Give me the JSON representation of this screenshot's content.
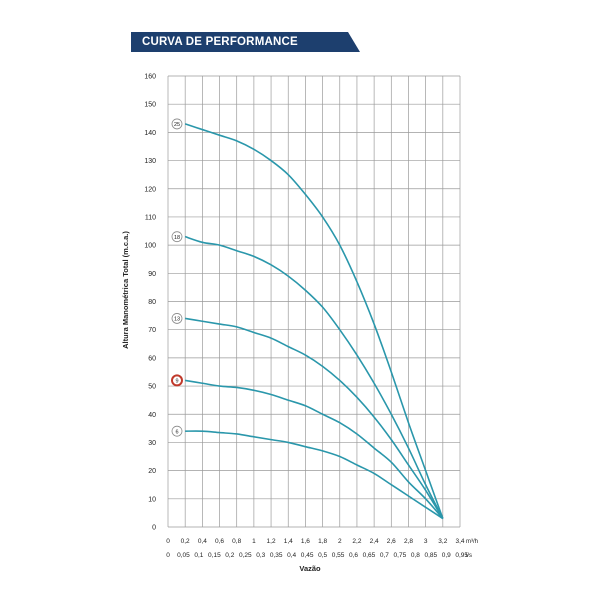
{
  "header": {
    "title": "CURVA DE PERFORMANCE"
  },
  "colors": {
    "banner": "#1d3f6e",
    "curve": "#2a97ab",
    "grid": "#9a9a9a",
    "highlight": "#c0392b"
  },
  "chart_data": {
    "type": "line",
    "title": "",
    "ylabel": "Altura Manométrica Total (m.c.a.)",
    "xlabel": "Vazão",
    "ylim": [
      0,
      160
    ],
    "xlim": [
      0,
      3.4
    ],
    "grid": true,
    "y_ticks": [
      "0",
      "10",
      "20",
      "30",
      "40",
      "50",
      "60",
      "70",
      "80",
      "90",
      "100",
      "110",
      "120",
      "130",
      "140",
      "150",
      "160"
    ],
    "x_ticks_m3h": [
      "0",
      "0,2",
      "0,4",
      "0,6",
      "0,8",
      "1",
      "1,2",
      "1,4",
      "1,6",
      "1,8",
      "2",
      "2,2",
      "2,4",
      "2,6",
      "2,8",
      "3",
      "3,2",
      "3,4"
    ],
    "x_unit_m3h": "m³/h",
    "x_ticks_ls": [
      "0",
      "0,05",
      "0,1",
      "0,15",
      "0,2",
      "0,25",
      "0,3",
      "0,35",
      "0,4",
      "0,45",
      "0,5",
      "0,55",
      "0,6",
      "0,65",
      "0,7",
      "0,75",
      "0,8",
      "0,85",
      "0,9",
      "0,95"
    ],
    "x_unit_ls": "l/s",
    "highlighted_series": "9",
    "series": [
      {
        "name": "25",
        "x": [
          0.2,
          0.4,
          0.6,
          0.8,
          1.0,
          1.2,
          1.4,
          1.6,
          1.8,
          2.0,
          2.2,
          2.4,
          2.6,
          2.8,
          3.0,
          3.2
        ],
        "values": [
          143,
          141,
          139,
          137,
          134,
          130,
          125,
          118,
          110,
          100,
          87,
          72,
          55,
          37,
          20,
          3
        ]
      },
      {
        "name": "18",
        "x": [
          0.2,
          0.4,
          0.6,
          0.8,
          1.0,
          1.2,
          1.4,
          1.6,
          1.8,
          2.0,
          2.2,
          2.4,
          2.6,
          2.8,
          3.0,
          3.2
        ],
        "values": [
          103,
          101,
          100,
          98,
          96,
          93,
          89,
          84,
          78,
          70,
          61,
          51,
          40,
          28,
          15,
          3
        ]
      },
      {
        "name": "13",
        "x": [
          0.2,
          0.4,
          0.6,
          0.8,
          1.0,
          1.2,
          1.4,
          1.6,
          1.8,
          2.0,
          2.2,
          2.4,
          2.6,
          2.8,
          3.0,
          3.2
        ],
        "values": [
          74,
          73,
          72,
          71,
          69,
          67,
          64,
          61,
          57,
          52,
          46,
          39,
          31,
          22,
          13,
          3
        ]
      },
      {
        "name": "9",
        "x": [
          0.2,
          0.4,
          0.6,
          0.8,
          1.0,
          1.2,
          1.4,
          1.6,
          1.8,
          2.0,
          2.2,
          2.4,
          2.6,
          2.8,
          3.0,
          3.2
        ],
        "values": [
          52,
          51,
          50,
          49.5,
          48.5,
          47,
          45,
          43,
          40,
          37,
          33,
          28,
          23,
          16,
          10,
          3
        ]
      },
      {
        "name": "6",
        "x": [
          0.2,
          0.4,
          0.6,
          0.8,
          1.0,
          1.2,
          1.4,
          1.6,
          1.8,
          2.0,
          2.2,
          2.4,
          2.6,
          2.8,
          3.0,
          3.2
        ],
        "values": [
          34,
          34,
          33.5,
          33,
          32,
          31,
          30,
          28.5,
          27,
          25,
          22,
          19,
          15,
          11,
          7,
          3
        ]
      }
    ]
  }
}
